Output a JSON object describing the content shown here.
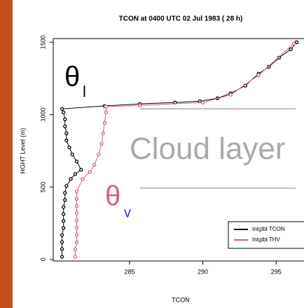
{
  "chart_data": {
    "type": "scatter",
    "title": "TCON  at  0400 UTC 02 Jul 1983 ( 28 h)",
    "xlabel": "TCON",
    "ylabel": "HGHT Level (m)",
    "xlim": [
      279.8,
      296.9
    ],
    "ylim": [
      -10,
      1525
    ],
    "xticks": [
      285,
      290,
      295
    ],
    "yticks": [
      0,
      500,
      1000,
      1500
    ],
    "cloud_layer": [
      493,
      1040
    ],
    "annotations": {
      "theta_l": "θ",
      "theta_l_sub": "l",
      "theta_v": "θ",
      "theta_v_sub": "v",
      "cloud": "Cloud layer"
    },
    "legend": "bottom-right",
    "series": [
      {
        "name": "Intgtbl TCON",
        "color": "#000000",
        "x": [
          280.4,
          280.4,
          280.4,
          280.4,
          280.5,
          280.5,
          280.5,
          280.5,
          280.6,
          280.6,
          280.7,
          281.0,
          281.3,
          281.7,
          281.4,
          281.1,
          280.9,
          280.7,
          280.7,
          280.6,
          280.6,
          280.5,
          280.4,
          283.3,
          285.7,
          288.1,
          289.8,
          291.0,
          291.9,
          292.9,
          293.8,
          294.5,
          295.2,
          296.0,
          296.4
        ],
        "values": [
          19,
          73,
          121,
          169,
          218,
          266,
          314,
          363,
          411,
          460,
          508,
          556,
          590,
          619,
          677,
          726,
          774,
          822,
          871,
          919,
          968,
          1016,
          1040,
          1060,
          1074,
          1084,
          1093,
          1113,
          1147,
          1200,
          1282,
          1330,
          1393,
          1451,
          1500
        ]
      },
      {
        "name": "Intgtbl THV",
        "color": "#d9607a",
        "x": [
          281.3,
          281.3,
          281.4,
          281.4,
          281.4,
          281.4,
          281.4,
          281.4,
          281.4,
          281.4,
          281.8,
          282.3,
          282.6,
          282.9,
          283.1,
          283.2,
          283.3,
          283.4,
          283.4,
          285.7,
          290.0,
          291.9,
          293.8,
          296.2
        ],
        "values": [
          19,
          70,
          120,
          170,
          220,
          270,
          320,
          370,
          420,
          470,
          556,
          605,
          653,
          726,
          798,
          871,
          943,
          1016,
          1055,
          1064,
          1084,
          1137,
          1272,
          1490
        ]
      }
    ]
  }
}
